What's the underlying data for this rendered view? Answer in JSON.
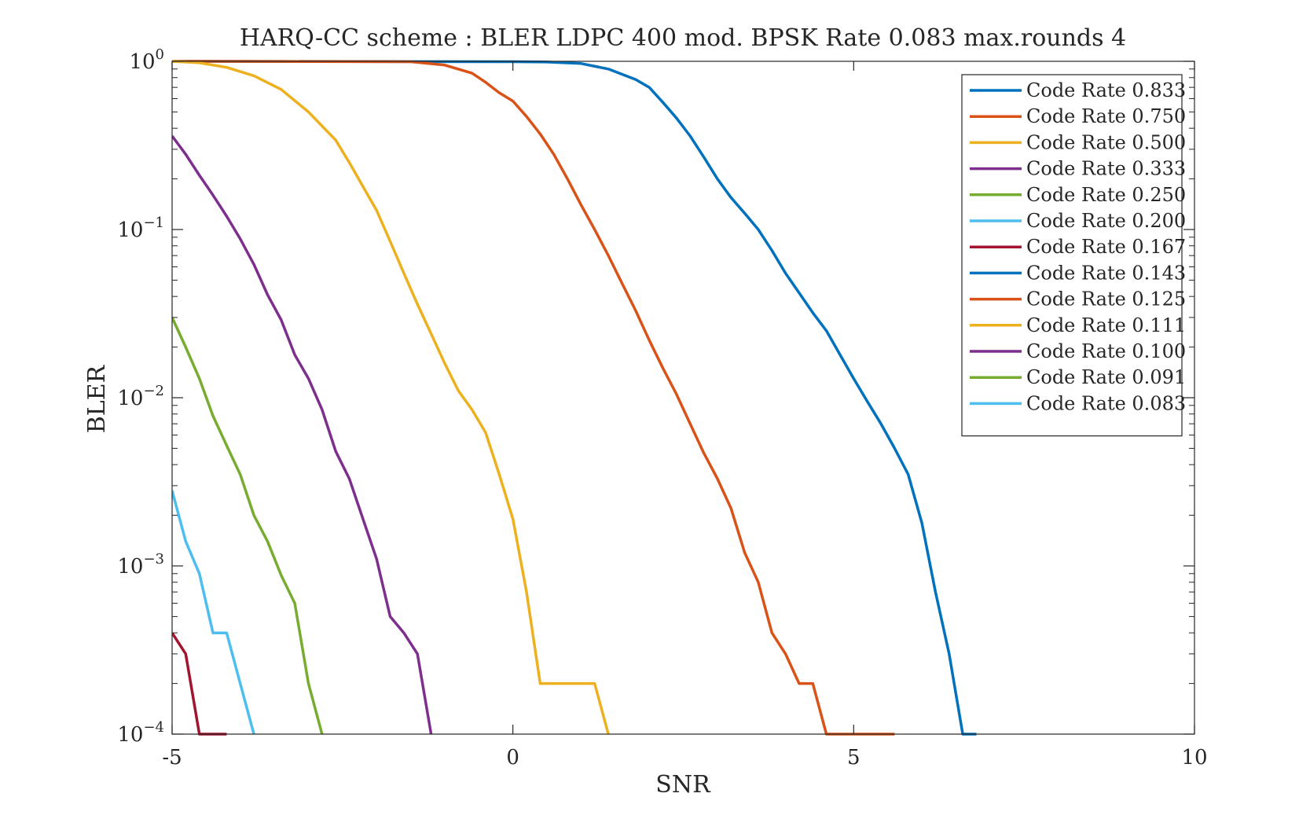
{
  "chart_data": {
    "type": "line",
    "title": "HARQ-CC scheme : BLER LDPC 400 mod. BPSK Rate 0.083 max.rounds 4",
    "xlabel": "SNR",
    "ylabel": "BLER",
    "xlim": [
      -5,
      10
    ],
    "ylim": [
      0.0001,
      1
    ],
    "yscale": "log",
    "grid": false,
    "legend_position": "top-right",
    "x_ticks": [
      {
        "value": -5,
        "label": "-5"
      },
      {
        "value": 0,
        "label": "0"
      },
      {
        "value": 5,
        "label": "5"
      },
      {
        "value": 10,
        "label": "10"
      }
    ],
    "y_ticks": [
      {
        "value": 1,
        "base": "10",
        "exp": "0"
      },
      {
        "value": 0.1,
        "base": "10",
        "exp": "−1"
      },
      {
        "value": 0.01,
        "base": "10",
        "exp": "−2"
      },
      {
        "value": 0.001,
        "base": "10",
        "exp": "−3"
      },
      {
        "value": 0.0001,
        "base": "10",
        "exp": "−4"
      }
    ],
    "series": [
      {
        "name": "Code Rate 0.833",
        "color": "#0072BD",
        "points": [
          [
            -5,
            1
          ],
          [
            0,
            0.995
          ],
          [
            0.5,
            0.99
          ],
          [
            1,
            0.97
          ],
          [
            1.4,
            0.9
          ],
          [
            1.8,
            0.78
          ],
          [
            2,
            0.7
          ],
          [
            2.2,
            0.57
          ],
          [
            2.4,
            0.46
          ],
          [
            2.6,
            0.36
          ],
          [
            2.8,
            0.27
          ],
          [
            3,
            0.2
          ],
          [
            3.2,
            0.155
          ],
          [
            3.4,
            0.125
          ],
          [
            3.6,
            0.1
          ],
          [
            3.8,
            0.075
          ],
          [
            4,
            0.055
          ],
          [
            4.2,
            0.042
          ],
          [
            4.4,
            0.032
          ],
          [
            4.6,
            0.025
          ],
          [
            4.8,
            0.018
          ],
          [
            5,
            0.013
          ],
          [
            5.2,
            0.0095
          ],
          [
            5.4,
            0.007
          ],
          [
            5.6,
            0.005
          ],
          [
            5.8,
            0.0035
          ],
          [
            6,
            0.0018
          ],
          [
            6.2,
            0.0007
          ],
          [
            6.4,
            0.0003
          ],
          [
            6.6,
            0.0001
          ],
          [
            6.8,
            0.0001
          ]
        ]
      },
      {
        "name": "Code Rate 0.750",
        "color": "#D95319",
        "points": [
          [
            -5,
            1
          ],
          [
            -1.5,
            0.995
          ],
          [
            -1,
            0.95
          ],
          [
            -0.6,
            0.85
          ],
          [
            -0.4,
            0.75
          ],
          [
            -0.2,
            0.65
          ],
          [
            0,
            0.58
          ],
          [
            0.2,
            0.47
          ],
          [
            0.4,
            0.37
          ],
          [
            0.6,
            0.28
          ],
          [
            0.8,
            0.2
          ],
          [
            1,
            0.14
          ],
          [
            1.2,
            0.1
          ],
          [
            1.4,
            0.07
          ],
          [
            1.6,
            0.048
          ],
          [
            1.8,
            0.033
          ],
          [
            2,
            0.022
          ],
          [
            2.2,
            0.015
          ],
          [
            2.4,
            0.0105
          ],
          [
            2.6,
            0.007
          ],
          [
            2.8,
            0.0047
          ],
          [
            3,
            0.0033
          ],
          [
            3.2,
            0.0022
          ],
          [
            3.4,
            0.0012
          ],
          [
            3.6,
            0.0008
          ],
          [
            3.8,
            0.0004
          ],
          [
            4,
            0.0003
          ],
          [
            4.2,
            0.0002
          ],
          [
            4.4,
            0.0002
          ],
          [
            4.6,
            0.0001
          ],
          [
            5,
            0.0001
          ],
          [
            5.6,
            0.0001
          ]
        ]
      },
      {
        "name": "Code Rate 0.500",
        "color": "#EDB120",
        "points": [
          [
            -5,
            1
          ],
          [
            -4.6,
            0.98
          ],
          [
            -4.2,
            0.92
          ],
          [
            -3.8,
            0.82
          ],
          [
            -3.4,
            0.68
          ],
          [
            -3,
            0.5
          ],
          [
            -2.6,
            0.34
          ],
          [
            -2.4,
            0.25
          ],
          [
            -2.2,
            0.18
          ],
          [
            -2,
            0.13
          ],
          [
            -1.8,
            0.085
          ],
          [
            -1.6,
            0.055
          ],
          [
            -1.4,
            0.036
          ],
          [
            -1.2,
            0.024
          ],
          [
            -1,
            0.016
          ],
          [
            -0.8,
            0.011
          ],
          [
            -0.6,
            0.0085
          ],
          [
            -0.4,
            0.0062
          ],
          [
            -0.2,
            0.0035
          ],
          [
            0,
            0.0019
          ],
          [
            0.2,
            0.0007
          ],
          [
            0.4,
            0.0002
          ],
          [
            0.8,
            0.0002
          ],
          [
            1.2,
            0.0002
          ],
          [
            1.4,
            0.0001
          ]
        ]
      },
      {
        "name": "Code Rate 0.333",
        "color": "#7E2F8E",
        "points": [
          [
            -5,
            0.36
          ],
          [
            -4.8,
            0.28
          ],
          [
            -4.6,
            0.21
          ],
          [
            -4.4,
            0.16
          ],
          [
            -4.2,
            0.12
          ],
          [
            -4,
            0.088
          ],
          [
            -3.8,
            0.062
          ],
          [
            -3.6,
            0.041
          ],
          [
            -3.4,
            0.029
          ],
          [
            -3.2,
            0.018
          ],
          [
            -3,
            0.013
          ],
          [
            -2.8,
            0.0085
          ],
          [
            -2.6,
            0.0048
          ],
          [
            -2.4,
            0.0033
          ],
          [
            -2.2,
            0.0019
          ],
          [
            -2,
            0.0011
          ],
          [
            -1.8,
            0.0005
          ],
          [
            -1.6,
            0.0004
          ],
          [
            -1.4,
            0.0003
          ],
          [
            -1.2,
            0.0001
          ]
        ]
      },
      {
        "name": "Code Rate 0.250",
        "color": "#77AC30",
        "points": [
          [
            -5,
            0.03
          ],
          [
            -4.8,
            0.02
          ],
          [
            -4.6,
            0.013
          ],
          [
            -4.4,
            0.0078
          ],
          [
            -4.2,
            0.0052
          ],
          [
            -4,
            0.0035
          ],
          [
            -3.8,
            0.002
          ],
          [
            -3.6,
            0.0014
          ],
          [
            -3.4,
            0.00088
          ],
          [
            -3.2,
            0.0006
          ],
          [
            -3,
            0.0002
          ],
          [
            -2.8,
            0.0001
          ]
        ]
      },
      {
        "name": "Code Rate 0.200",
        "color": "#4DBEEE",
        "points": [
          [
            -5,
            0.0028
          ],
          [
            -4.8,
            0.0014
          ],
          [
            -4.6,
            0.0009
          ],
          [
            -4.4,
            0.0004
          ],
          [
            -4.2,
            0.0004
          ],
          [
            -4,
            0.0002
          ],
          [
            -3.8,
            0.0001
          ]
        ]
      },
      {
        "name": "Code Rate 0.167",
        "color": "#A2142F",
        "points": [
          [
            -5,
            0.0004
          ],
          [
            -4.8,
            0.0003
          ],
          [
            -4.6,
            0.0001
          ],
          [
            -4.2,
            0.0001
          ]
        ]
      },
      {
        "name": "Code Rate 0.143",
        "color": "#0072BD",
        "points": []
      },
      {
        "name": "Code Rate 0.125",
        "color": "#D95319",
        "points": []
      },
      {
        "name": "Code Rate 0.111",
        "color": "#EDB120",
        "points": []
      },
      {
        "name": "Code Rate 0.100",
        "color": "#7E2F8E",
        "points": []
      },
      {
        "name": "Code Rate 0.091",
        "color": "#77AC30",
        "points": []
      },
      {
        "name": "Code Rate 0.083",
        "color": "#4DBEEE",
        "points": []
      }
    ]
  }
}
